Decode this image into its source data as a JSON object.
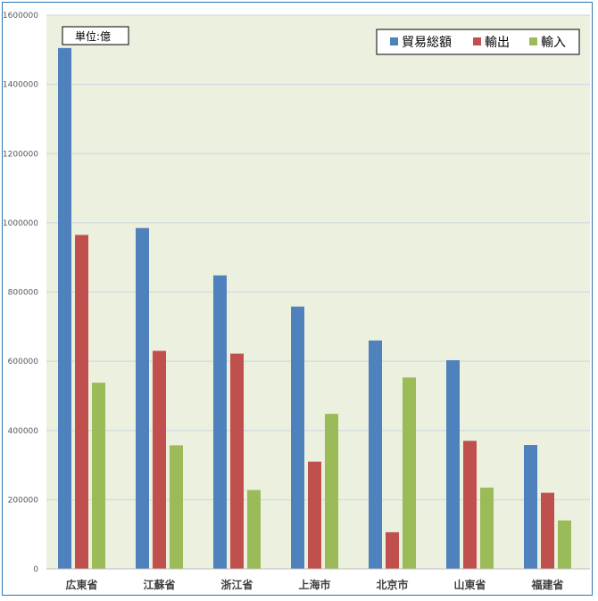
{
  "chart_data": {
    "type": "bar",
    "unit_label": "単位:億",
    "categories": [
      "広東省",
      "江蘇省",
      "浙江省",
      "上海市",
      "北京市",
      "山東省",
      "福建省"
    ],
    "series": [
      {
        "name": "貿易総額",
        "color": "#4f81bd",
        "values": [
          1505000,
          985000,
          848000,
          758000,
          660000,
          603000,
          358000
        ]
      },
      {
        "name": "輸出",
        "color": "#c0504d",
        "values": [
          965000,
          630000,
          622000,
          310000,
          106000,
          370000,
          220000
        ]
      },
      {
        "name": "輸入",
        "color": "#9bbb59",
        "values": [
          538000,
          357000,
          228000,
          448000,
          553000,
          235000,
          140000
        ]
      }
    ],
    "y_ticks": [
      "0",
      "200000",
      "400000",
      "600000",
      "800000",
      "1000000",
      "1200000",
      "1400000",
      "1600000"
    ],
    "ylim": [
      0,
      1600000
    ],
    "grid": true,
    "legend_position": "top-right",
    "plot_background": "#ebf1de",
    "gridline_color": "#c9d5e6"
  }
}
